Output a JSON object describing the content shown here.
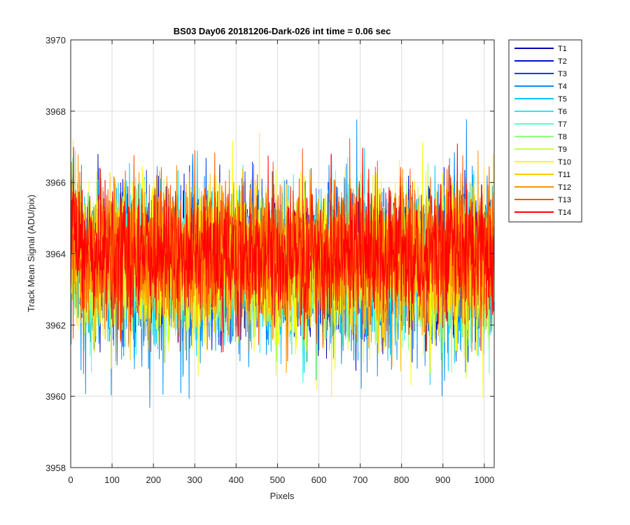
{
  "chart_data": {
    "type": "line",
    "title": "BS03 Day06 20181206-Dark-026 int time = 0.06 sec",
    "xlabel": "Pixels",
    "ylabel": "Track Mean Signal (ADU/pix)",
    "xlim": [
      0,
      1024
    ],
    "ylim": [
      3958,
      3970
    ],
    "xticks": [
      0,
      100,
      200,
      300,
      400,
      500,
      600,
      700,
      800,
      900,
      1000
    ],
    "yticks": [
      3958,
      3960,
      3962,
      3964,
      3966,
      3968,
      3970
    ],
    "grid": true,
    "legend_position": "outside-top-right",
    "n_points": 1024,
    "series": [
      {
        "name": "T1",
        "color": "#0000b4",
        "mean": 3963.7,
        "min": 3960.2,
        "max": 3966.8
      },
      {
        "name": "T2",
        "color": "#0010d8",
        "mean": 3963.7,
        "min": 3960.1,
        "max": 3966.9
      },
      {
        "name": "T3",
        "color": "#0040f0",
        "mean": 3963.7,
        "min": 3960.4,
        "max": 3966.8
      },
      {
        "name": "T4",
        "color": "#0090ff",
        "mean": 3963.6,
        "min": 3959.1,
        "max": 3968.3
      },
      {
        "name": "T5",
        "color": "#00c8ff",
        "mean": 3963.6,
        "min": 3959.4,
        "max": 3967.0
      },
      {
        "name": "T6",
        "color": "#20f0f0",
        "mean": 3963.6,
        "min": 3960.0,
        "max": 3967.0
      },
      {
        "name": "T7",
        "color": "#60ffc0",
        "mean": 3963.7,
        "min": 3960.5,
        "max": 3967.0
      },
      {
        "name": "T8",
        "color": "#90ff80",
        "mean": 3963.7,
        "min": 3960.6,
        "max": 3967.2
      },
      {
        "name": "T9",
        "color": "#c8ff40",
        "mean": 3963.7,
        "min": 3960.3,
        "max": 3967.3
      },
      {
        "name": "T10",
        "color": "#ffff00",
        "mean": 3963.8,
        "min": 3959.9,
        "max": 3968.4
      },
      {
        "name": "T11",
        "color": "#ffc800",
        "mean": 3963.8,
        "min": 3960.4,
        "max": 3967.4
      },
      {
        "name": "T12",
        "color": "#ff9000",
        "mean": 3963.9,
        "min": 3960.3,
        "max": 3967.8
      },
      {
        "name": "T13",
        "color": "#ff5000",
        "mean": 3964.0,
        "min": 3960.4,
        "max": 3967.8
      },
      {
        "name": "T14",
        "color": "#ff0000",
        "mean": 3964.0,
        "min": 3961.2,
        "max": 3967.8
      }
    ]
  }
}
